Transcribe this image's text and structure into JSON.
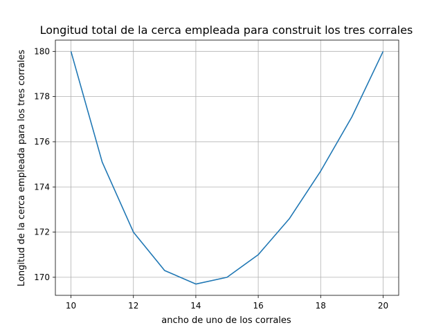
{
  "chart_data": {
    "type": "line",
    "title": "Longitud total de la cerca empleada para construit los tres corrales",
    "xlabel": "ancho de uno de los corrales",
    "ylabel": "Longitud de la cerca empleada para los tres corrales",
    "x": [
      10,
      11,
      12,
      13,
      14,
      15,
      16,
      17,
      18,
      19,
      20
    ],
    "series": [
      {
        "values": [
          180,
          175.1,
          172.0,
          170.3,
          169.7,
          170.0,
          171.0,
          172.6,
          174.7,
          177.1,
          180
        ],
        "color": "#1f77b4"
      }
    ],
    "xlim": [
      9.5,
      20.5
    ],
    "ylim": [
      169.2,
      180.5
    ],
    "xticks": [
      10,
      12,
      14,
      16,
      18,
      20
    ],
    "yticks": [
      170,
      172,
      174,
      176,
      178,
      180
    ],
    "grid": true,
    "legend": false
  }
}
